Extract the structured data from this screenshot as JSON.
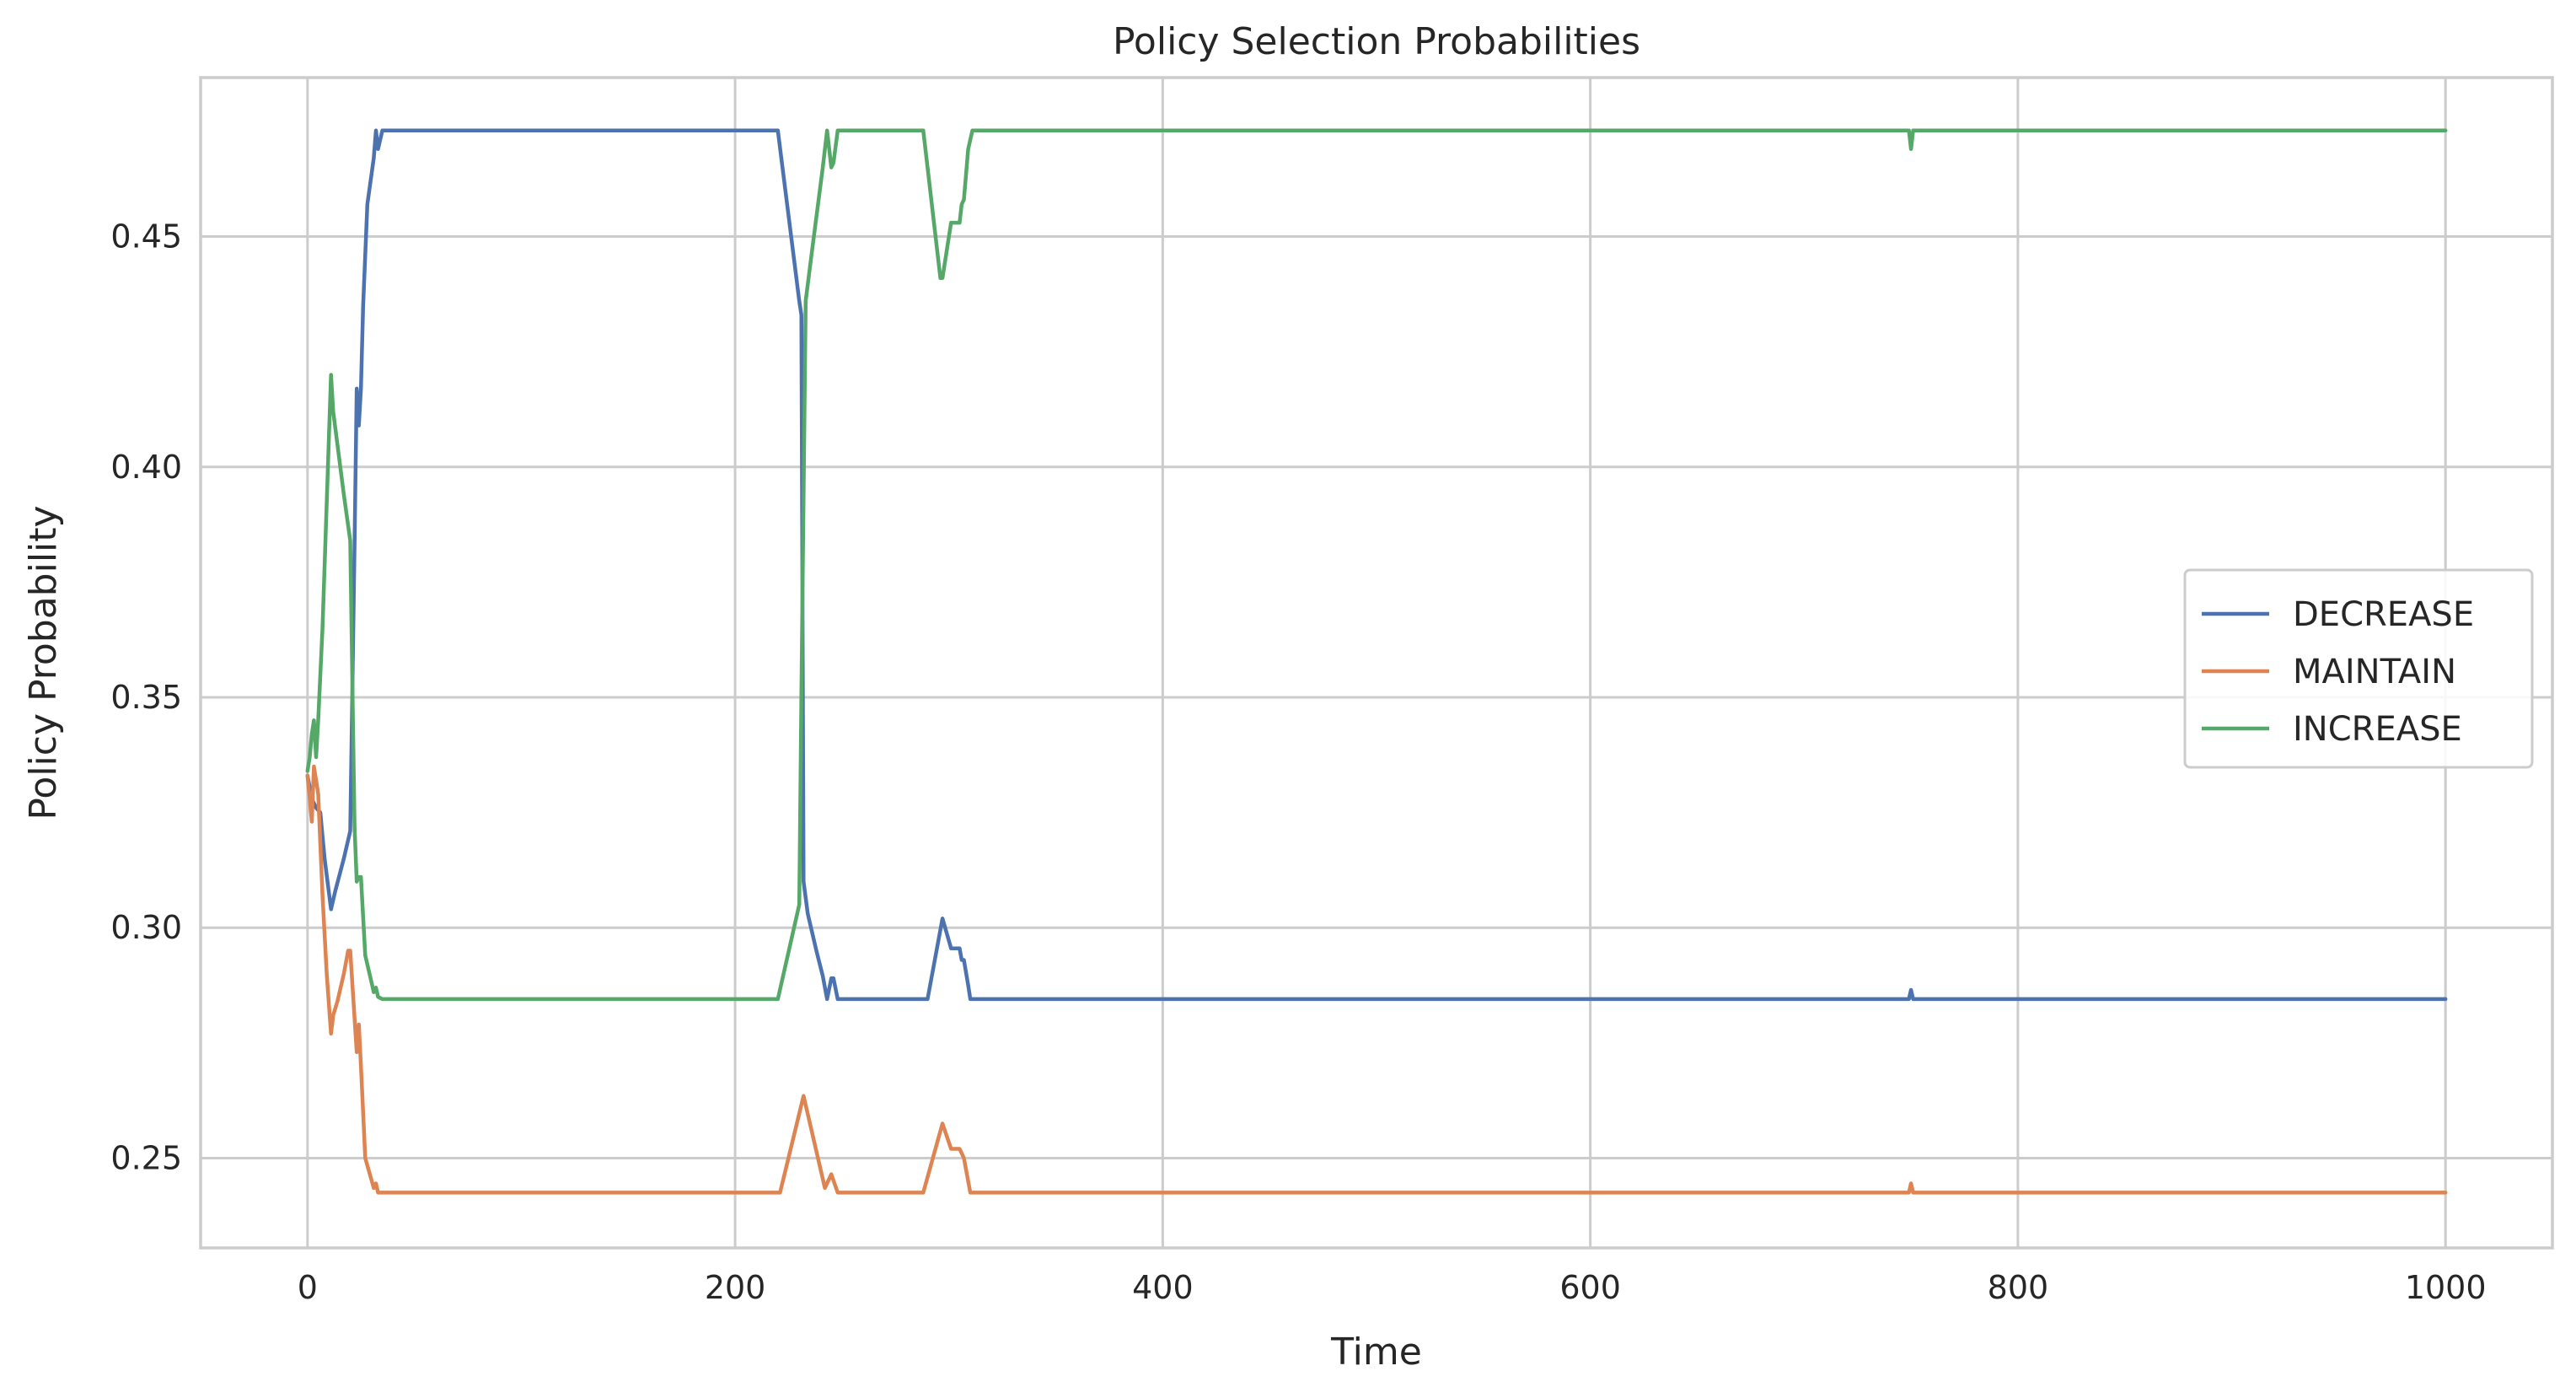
{
  "chart_data": {
    "type": "line",
    "title": "Policy Selection Probabilities",
    "xlabel": "Time",
    "ylabel": "Policy Probability",
    "xlim": [
      -50,
      1050
    ],
    "ylim": [
      0.2305,
      0.4845
    ],
    "xticks": [
      0,
      200,
      400,
      600,
      800,
      1000
    ],
    "xtick_labels": [
      "0",
      "200",
      "400",
      "600",
      "800",
      "1000"
    ],
    "yticks": [
      0.25,
      0.3,
      0.35,
      0.4,
      0.45
    ],
    "ytick_labels": [
      "0.25",
      "0.30",
      "0.35",
      "0.40",
      "0.45"
    ],
    "grid": true,
    "legend_position": "center-right",
    "series": [
      {
        "name": "DECREASE",
        "color": "#4c72b0",
        "points": [
          [
            0,
            0.333
          ],
          [
            2,
            0.328
          ],
          [
            4,
            0.326
          ],
          [
            6,
            0.325
          ],
          [
            8,
            0.315
          ],
          [
            11,
            0.304
          ],
          [
            13,
            0.308
          ],
          [
            17,
            0.315
          ],
          [
            20,
            0.321
          ],
          [
            22,
            0.383
          ],
          [
            23,
            0.417
          ],
          [
            24,
            0.409
          ],
          [
            25,
            0.417
          ],
          [
            26,
            0.435
          ],
          [
            28,
            0.457
          ],
          [
            31,
            0.467
          ],
          [
            32,
            0.473
          ],
          [
            33,
            0.469
          ],
          [
            35,
            0.473
          ],
          [
            220,
            0.473
          ],
          [
            230,
            0.436
          ],
          [
            231,
            0.433
          ],
          [
            232,
            0.31
          ],
          [
            234,
            0.303
          ],
          [
            238,
            0.295
          ],
          [
            241,
            0.2895
          ],
          [
            243,
            0.2845
          ],
          [
            245,
            0.289
          ],
          [
            246,
            0.289
          ],
          [
            248,
            0.2845
          ],
          [
            290,
            0.2845
          ],
          [
            297,
            0.302
          ],
          [
            301,
            0.2955
          ],
          [
            305,
            0.2955
          ],
          [
            306,
            0.293
          ],
          [
            307,
            0.293
          ],
          [
            309,
            0.2875
          ],
          [
            310,
            0.2845
          ],
          [
            749,
            0.2845
          ],
          [
            750,
            0.2865
          ],
          [
            751,
            0.2845
          ],
          [
            1000,
            0.2845
          ]
        ]
      },
      {
        "name": "MAINTAIN",
        "color": "#dd8452",
        "points": [
          [
            0,
            0.333
          ],
          [
            1,
            0.328
          ],
          [
            2,
            0.323
          ],
          [
            3,
            0.335
          ],
          [
            4,
            0.332
          ],
          [
            5,
            0.329
          ],
          [
            7,
            0.307
          ],
          [
            9,
            0.29
          ],
          [
            11,
            0.277
          ],
          [
            12,
            0.281
          ],
          [
            14,
            0.284
          ],
          [
            17,
            0.29
          ],
          [
            19,
            0.295
          ],
          [
            20,
            0.295
          ],
          [
            23,
            0.273
          ],
          [
            24,
            0.279
          ],
          [
            25,
            0.27
          ],
          [
            27,
            0.25
          ],
          [
            31,
            0.2435
          ],
          [
            32,
            0.2445
          ],
          [
            33,
            0.2425
          ],
          [
            221,
            0.2425
          ],
          [
            232,
            0.2635
          ],
          [
            242,
            0.2435
          ],
          [
            245,
            0.2465
          ],
          [
            248,
            0.2425
          ],
          [
            288,
            0.2425
          ],
          [
            297,
            0.2575
          ],
          [
            301,
            0.252
          ],
          [
            305,
            0.252
          ],
          [
            307,
            0.25
          ],
          [
            310,
            0.2425
          ],
          [
            749,
            0.2425
          ],
          [
            750,
            0.2445
          ],
          [
            751,
            0.2425
          ],
          [
            1000,
            0.2425
          ]
        ]
      },
      {
        "name": "INCREASE",
        "color": "#55a868",
        "points": [
          [
            0,
            0.334
          ],
          [
            1,
            0.337
          ],
          [
            2,
            0.342
          ],
          [
            3,
            0.345
          ],
          [
            4,
            0.337
          ],
          [
            5,
            0.345
          ],
          [
            7,
            0.365
          ],
          [
            11,
            0.42
          ],
          [
            12,
            0.412
          ],
          [
            17,
            0.394
          ],
          [
            20,
            0.384
          ],
          [
            22,
            0.322
          ],
          [
            23,
            0.31
          ],
          [
            24,
            0.311
          ],
          [
            25,
            0.311
          ],
          [
            27,
            0.294
          ],
          [
            30,
            0.288
          ],
          [
            31,
            0.286
          ],
          [
            32,
            0.287
          ],
          [
            33,
            0.285
          ],
          [
            35,
            0.2845
          ],
          [
            220,
            0.2845
          ],
          [
            230,
            0.305
          ],
          [
            231,
            0.35
          ],
          [
            233,
            0.436
          ],
          [
            236,
            0.447
          ],
          [
            241,
            0.465
          ],
          [
            243,
            0.473
          ],
          [
            245,
            0.465
          ],
          [
            246,
            0.466
          ],
          [
            248,
            0.473
          ],
          [
            288,
            0.473
          ],
          [
            296,
            0.441
          ],
          [
            297,
            0.441
          ],
          [
            301,
            0.453
          ],
          [
            305,
            0.453
          ],
          [
            306,
            0.457
          ],
          [
            307,
            0.458
          ],
          [
            309,
            0.469
          ],
          [
            311,
            0.473
          ],
          [
            749,
            0.473
          ],
          [
            750,
            0.469
          ],
          [
            751,
            0.473
          ],
          [
            1000,
            0.473
          ]
        ]
      }
    ]
  }
}
